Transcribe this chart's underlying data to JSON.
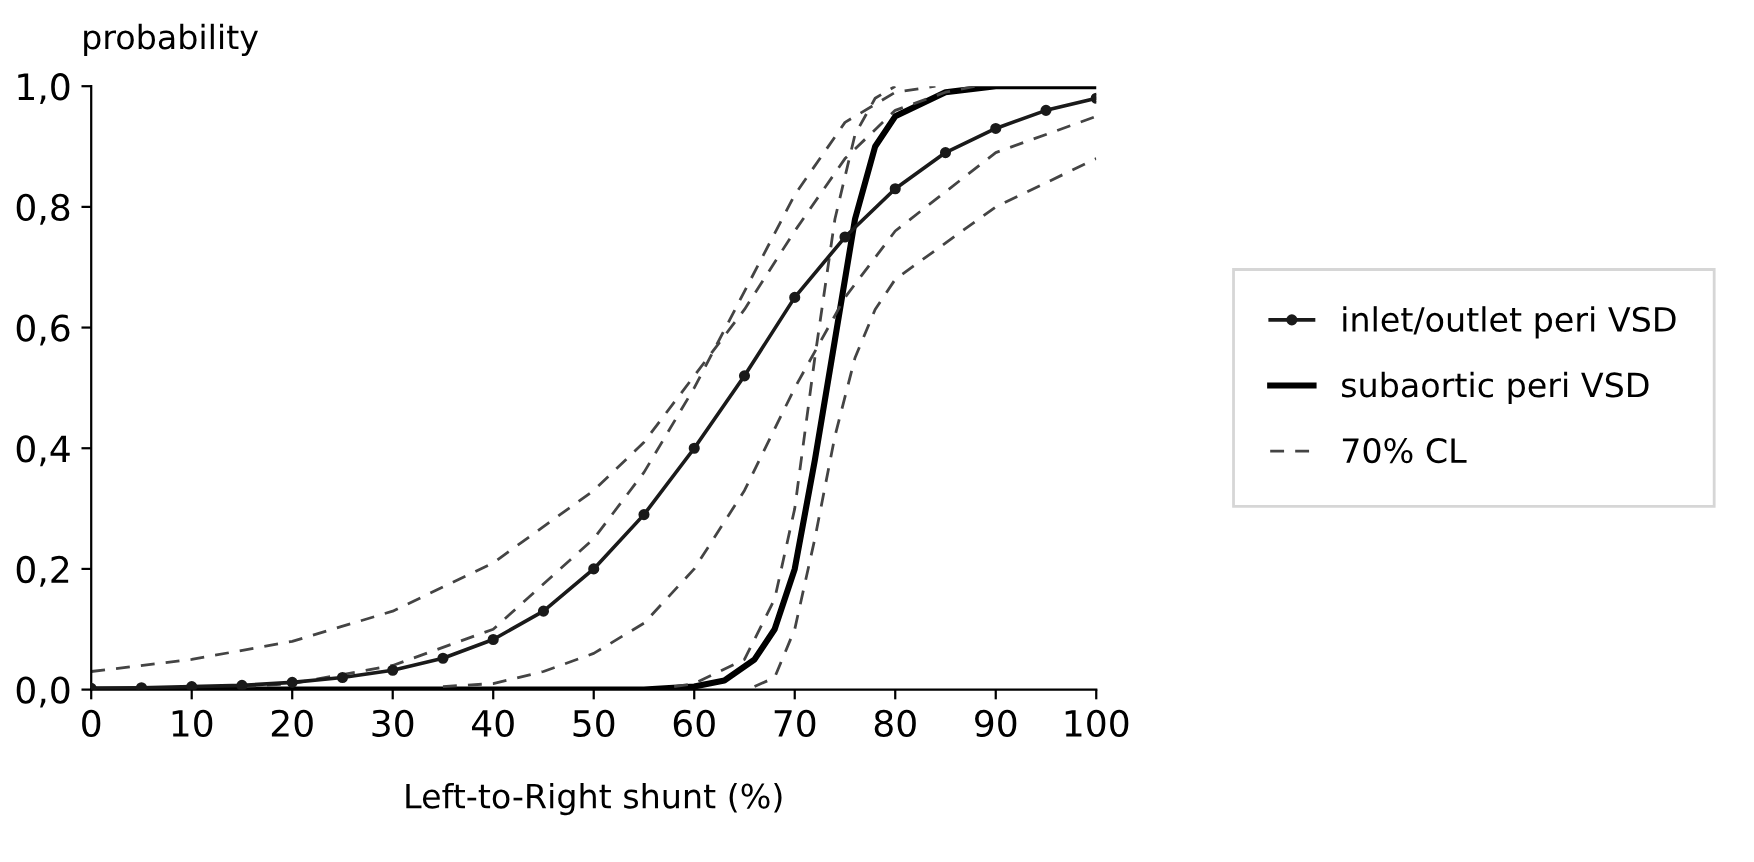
{
  "chart_data": {
    "type": "line",
    "xlabel": "Left-to-Right shunt (%)",
    "ylabel": "probability",
    "xlim": [
      0,
      100
    ],
    "ylim": [
      0,
      1.0
    ],
    "xticks": [
      0,
      10,
      20,
      30,
      40,
      50,
      60,
      70,
      80,
      90,
      100
    ],
    "yticks": [
      {
        "value": 0,
        "label": "0,0"
      },
      {
        "value": 0.2,
        "label": "0,2"
      },
      {
        "value": 0.4,
        "label": "0,4"
      },
      {
        "value": 0.6,
        "label": "0,6"
      },
      {
        "value": 0.8,
        "label": "0,8"
      },
      {
        "value": 1.0,
        "label": "1,0"
      }
    ],
    "grid": false,
    "legend": "right",
    "series": [
      {
        "name": "inlet/outlet peri VSD",
        "color": "#1a1a1a",
        "marker": "circle",
        "line_style": "solid",
        "x": [
          0,
          5,
          10,
          15,
          20,
          25,
          30,
          35,
          40,
          45,
          50,
          55,
          60,
          65,
          70,
          75,
          80,
          85,
          90,
          95,
          100
        ],
        "values": [
          0.002,
          0.003,
          0.005,
          0.007,
          0.012,
          0.02,
          0.032,
          0.052,
          0.083,
          0.13,
          0.2,
          0.29,
          0.4,
          0.52,
          0.65,
          0.75,
          0.83,
          0.89,
          0.93,
          0.96,
          0.98
        ]
      },
      {
        "name": "subaortic peri VSD",
        "color": "#000000",
        "marker": "none",
        "line_style": "solid",
        "x": [
          0,
          50,
          55,
          60,
          63,
          66,
          68,
          70,
          72,
          74,
          76,
          78,
          80,
          85,
          90,
          100
        ],
        "values": [
          0,
          0,
          0,
          0.005,
          0.015,
          0.05,
          0.1,
          0.2,
          0.38,
          0.58,
          0.78,
          0.9,
          0.95,
          0.99,
          1.0,
          1.0
        ]
      },
      {
        "name": "70% CL",
        "color": "#444444",
        "marker": "none",
        "line_style": "dashed",
        "x": [
          0,
          10,
          20,
          30,
          40,
          50,
          55,
          60,
          65,
          70,
          75,
          80,
          85,
          88
        ],
        "values": [
          0.03,
          0.05,
          0.08,
          0.13,
          0.21,
          0.33,
          0.41,
          0.52,
          0.63,
          0.76,
          0.88,
          0.96,
          0.99,
          1.0
        ]
      },
      {
        "color": "#444444",
        "marker": "none",
        "line_style": "dashed",
        "x": [
          15,
          20,
          30,
          40,
          50,
          55,
          60,
          65,
          70,
          75,
          80,
          84
        ],
        "values": [
          0.005,
          0.01,
          0.04,
          0.1,
          0.25,
          0.36,
          0.5,
          0.66,
          0.82,
          0.94,
          0.99,
          1.0
        ]
      },
      {
        "color": "#444444",
        "marker": "none",
        "line_style": "dashed",
        "x": [
          35,
          40,
          45,
          50,
          55,
          60,
          65,
          70,
          75,
          80,
          90,
          100
        ],
        "values": [
          0.005,
          0.01,
          0.03,
          0.06,
          0.11,
          0.2,
          0.33,
          0.5,
          0.65,
          0.76,
          0.89,
          0.95
        ]
      },
      {
        "color": "#444444",
        "marker": "none",
        "line_style": "dashed",
        "x": [
          66,
          68,
          70,
          72,
          74,
          76,
          78,
          80,
          90,
          100
        ],
        "values": [
          0.005,
          0.02,
          0.1,
          0.25,
          0.42,
          0.55,
          0.63,
          0.68,
          0.8,
          0.88
        ]
      },
      {
        "color": "#444444",
        "marker": "none",
        "line_style": "dashed",
        "x": [
          58,
          60,
          65,
          68,
          70,
          72,
          74,
          76,
          78,
          80
        ],
        "values": [
          0.005,
          0.01,
          0.05,
          0.15,
          0.3,
          0.55,
          0.78,
          0.92,
          0.98,
          1.0
        ]
      }
    ]
  }
}
